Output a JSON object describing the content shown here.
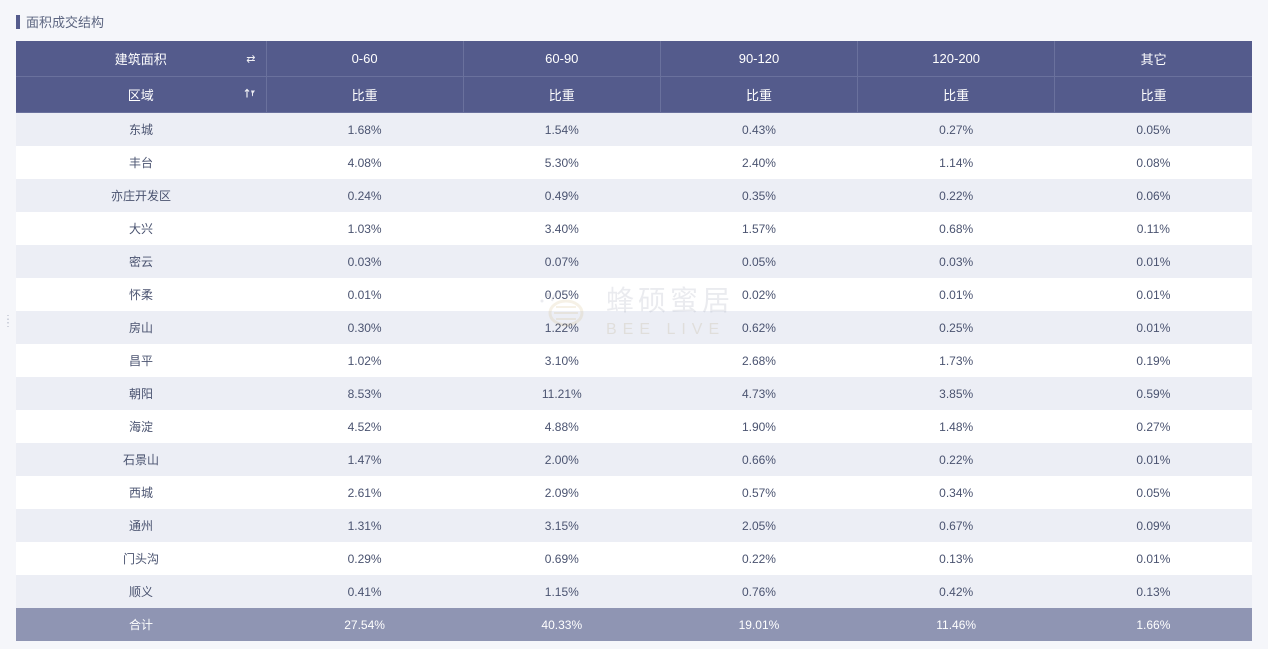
{
  "panel": {
    "title": "面积成交结构"
  },
  "table": {
    "headerRow1": {
      "firstCol": "建筑面积",
      "firstColIcon": "⇄",
      "cols": [
        "0-60",
        "60-90",
        "90-120",
        "120-200",
        "其它"
      ]
    },
    "headerRow2": {
      "firstCol": "区域",
      "firstColIcon": "↑▾",
      "sub": "比重"
    },
    "rows": [
      {
        "region": "东城",
        "cells": [
          "1.68%",
          "1.54%",
          "0.43%",
          "0.27%",
          "0.05%"
        ]
      },
      {
        "region": "丰台",
        "cells": [
          "4.08%",
          "5.30%",
          "2.40%",
          "1.14%",
          "0.08%"
        ]
      },
      {
        "region": "亦庄开发区",
        "cells": [
          "0.24%",
          "0.49%",
          "0.35%",
          "0.22%",
          "0.06%"
        ]
      },
      {
        "region": "大兴",
        "cells": [
          "1.03%",
          "3.40%",
          "1.57%",
          "0.68%",
          "0.11%"
        ]
      },
      {
        "region": "密云",
        "cells": [
          "0.03%",
          "0.07%",
          "0.05%",
          "0.03%",
          "0.01%"
        ]
      },
      {
        "region": "怀柔",
        "cells": [
          "0.01%",
          "0.05%",
          "0.02%",
          "0.01%",
          "0.01%"
        ]
      },
      {
        "region": "房山",
        "cells": [
          "0.30%",
          "1.22%",
          "0.62%",
          "0.25%",
          "0.01%"
        ]
      },
      {
        "region": "昌平",
        "cells": [
          "1.02%",
          "3.10%",
          "2.68%",
          "1.73%",
          "0.19%"
        ]
      },
      {
        "region": "朝阳",
        "cells": [
          "8.53%",
          "11.21%",
          "4.73%",
          "3.85%",
          "0.59%"
        ]
      },
      {
        "region": "海淀",
        "cells": [
          "4.52%",
          "4.88%",
          "1.90%",
          "1.48%",
          "0.27%"
        ]
      },
      {
        "region": "石景山",
        "cells": [
          "1.47%",
          "2.00%",
          "0.66%",
          "0.22%",
          "0.01%"
        ]
      },
      {
        "region": "西城",
        "cells": [
          "2.61%",
          "2.09%",
          "0.57%",
          "0.34%",
          "0.05%"
        ]
      },
      {
        "region": "通州",
        "cells": [
          "1.31%",
          "3.15%",
          "2.05%",
          "0.67%",
          "0.09%"
        ]
      },
      {
        "region": "门头沟",
        "cells": [
          "0.29%",
          "0.69%",
          "0.22%",
          "0.13%",
          "0.01%"
        ]
      },
      {
        "region": "顺义",
        "cells": [
          "0.41%",
          "1.15%",
          "0.76%",
          "0.42%",
          "0.13%"
        ]
      }
    ],
    "total": {
      "region": "合计",
      "cells": [
        "27.54%",
        "40.33%",
        "19.01%",
        "11.46%",
        "1.66%"
      ]
    }
  },
  "watermark": {
    "cn": "蜂硕蜜居",
    "en": "BEE LIVE"
  },
  "style": {
    "headerBg": "#545b8c",
    "headerBorder": "#6a719d",
    "oddRowBg": "#eceef5",
    "evenRowBg": "#ffffff",
    "totalRowBg": "#8f95b3",
    "textColor": "#4a5370",
    "pageBg": "#f5f6fa",
    "fontSizeBody": 12,
    "fontSizeHeader": 13
  }
}
